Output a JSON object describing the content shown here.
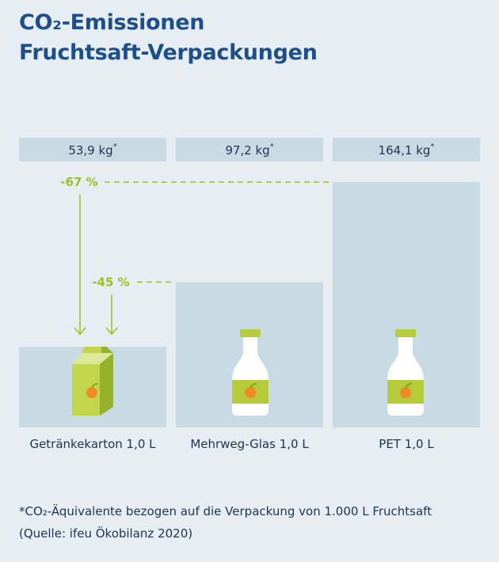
{
  "title_line1": "CO₂-Emissionen",
  "title_line2": "Fruchtsaft-Verpackungen",
  "chart_data": {
    "type": "bar",
    "unit": "kg",
    "categories": [
      "Getränkekarton 1,0 L",
      "Mehrweg-Glas 1,0 L",
      "PET 1,0 L"
    ],
    "values": [
      53.9,
      97.2,
      164.1
    ],
    "value_labels": [
      "53,9 kg",
      "97,2 kg",
      "164,1 kg"
    ],
    "value_label_marker": "*",
    "annotations": [
      {
        "text": "-67 %",
        "reference": "PET 1,0 L",
        "target": "Getränkekarton 1,0 L"
      },
      {
        "text": "-45 %",
        "reference": "Mehrweg-Glas 1,0 L",
        "target": "Getränkekarton 1,0 L"
      }
    ],
    "icons": [
      "juice-carton-icon",
      "glass-bottle-icon",
      "pet-bottle-icon"
    ],
    "colors": {
      "background": "#e6eef3",
      "bar": "#c8dbe4",
      "label_box": "#c8dbe4",
      "annotation": "#a3bc26",
      "text": "#1e3350",
      "title": "#1d4f8a"
    }
  },
  "footnote_line1": "*CO₂-Äquivalente bezogen auf die Verpackung von 1.000 L Fruchtsaft",
  "footnote_line2": "(Quelle: ifeu Ökobilanz 2020)"
}
